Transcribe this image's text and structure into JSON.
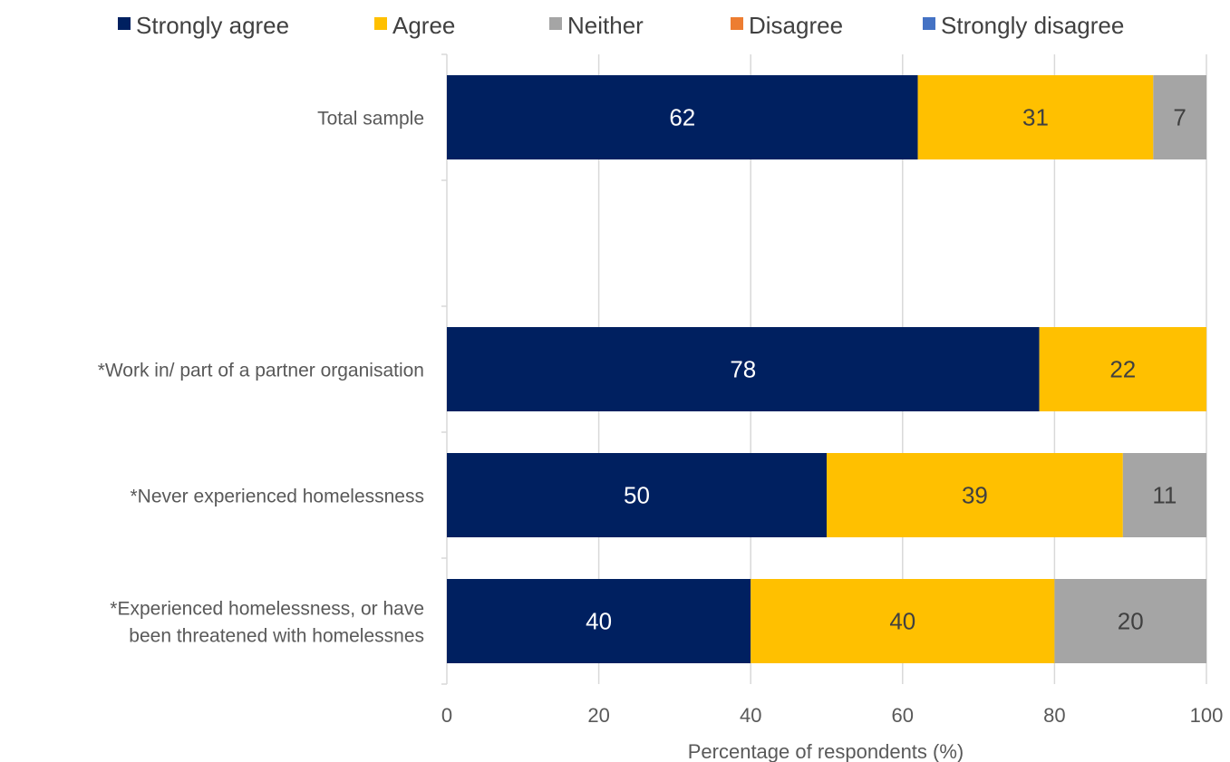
{
  "chart_data": {
    "type": "bar",
    "orientation": "horizontal",
    "stacked": true,
    "categories": [
      "Total sample",
      "",
      "*Work in/ part of a partner organisation",
      "*Never experienced homelessness",
      "*Experienced homelessness, or have been threatened with homelessnes"
    ],
    "series": [
      {
        "name": "Strongly agree",
        "color": "#002060",
        "label_color": "#ffffff",
        "values": [
          62,
          null,
          78,
          50,
          40
        ]
      },
      {
        "name": "Agree",
        "color": "#FFC000",
        "label_color": "#404040",
        "values": [
          31,
          null,
          22,
          39,
          40
        ]
      },
      {
        "name": "Neither",
        "color": "#A5A5A5",
        "label_color": "#404040",
        "values": [
          7,
          null,
          0,
          11,
          20
        ]
      },
      {
        "name": "Disagree",
        "color": "#ED7D31",
        "label_color": "#404040",
        "values": [
          0,
          null,
          0,
          0,
          0
        ]
      },
      {
        "name": "Strongly disagree",
        "color": "#4472C4",
        "label_color": "#ffffff",
        "values": [
          0,
          null,
          0,
          0,
          0
        ]
      }
    ],
    "xlabel": "Percentage of respondents (%)",
    "ylabel": "",
    "xlim": [
      0,
      100
    ],
    "xticks": [
      "0",
      "20",
      "40",
      "60",
      "80",
      "100"
    ],
    "grid": "vertical",
    "legend_position": "top"
  }
}
